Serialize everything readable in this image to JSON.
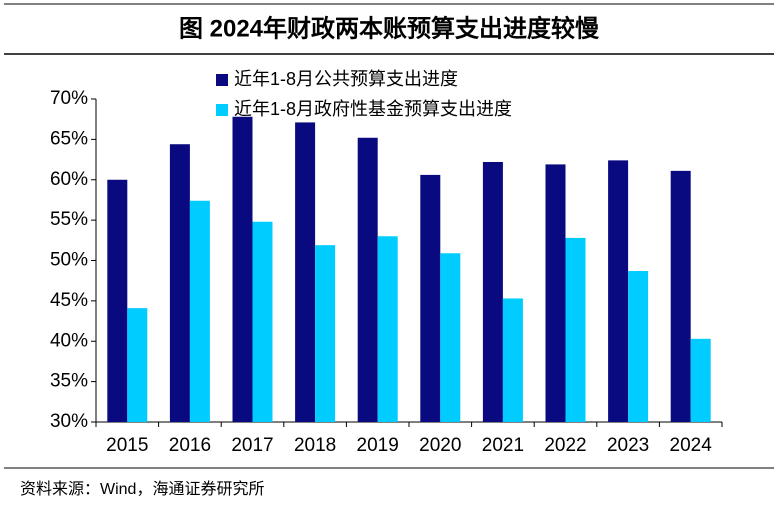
{
  "chart_data": {
    "type": "bar",
    "title": "图  2024年财政两本账预算支出进度较慢",
    "source": "资料来源：Wind，海通证券研究所",
    "categories": [
      "2015",
      "2016",
      "2017",
      "2018",
      "2019",
      "2020",
      "2021",
      "2022",
      "2023",
      "2024"
    ],
    "series": [
      {
        "name": "近年1-8月公共预算支出进度",
        "color": "#0a0a80",
        "values": [
          60.0,
          64.4,
          67.8,
          67.1,
          65.2,
          60.6,
          62.2,
          61.9,
          62.4,
          61.1
        ]
      },
      {
        "name": "近年1-8月政府性基金预算支出进度",
        "color": "#00ccff",
        "values": [
          44.1,
          57.4,
          54.8,
          51.9,
          53.0,
          50.9,
          45.3,
          52.8,
          48.7,
          40.3
        ]
      }
    ],
    "ylim": [
      30,
      70
    ],
    "yticks": [
      {
        "value": 30,
        "label": "30%"
      },
      {
        "value": 35,
        "label": "35%"
      },
      {
        "value": 40,
        "label": "40%"
      },
      {
        "value": 45,
        "label": "45%"
      },
      {
        "value": 50,
        "label": "50%"
      },
      {
        "value": 55,
        "label": "55%"
      },
      {
        "value": 60,
        "label": "60%"
      },
      {
        "value": 65,
        "label": "65%"
      },
      {
        "value": 70,
        "label": "70%"
      }
    ],
    "grid": false,
    "legend": "top-left"
  }
}
